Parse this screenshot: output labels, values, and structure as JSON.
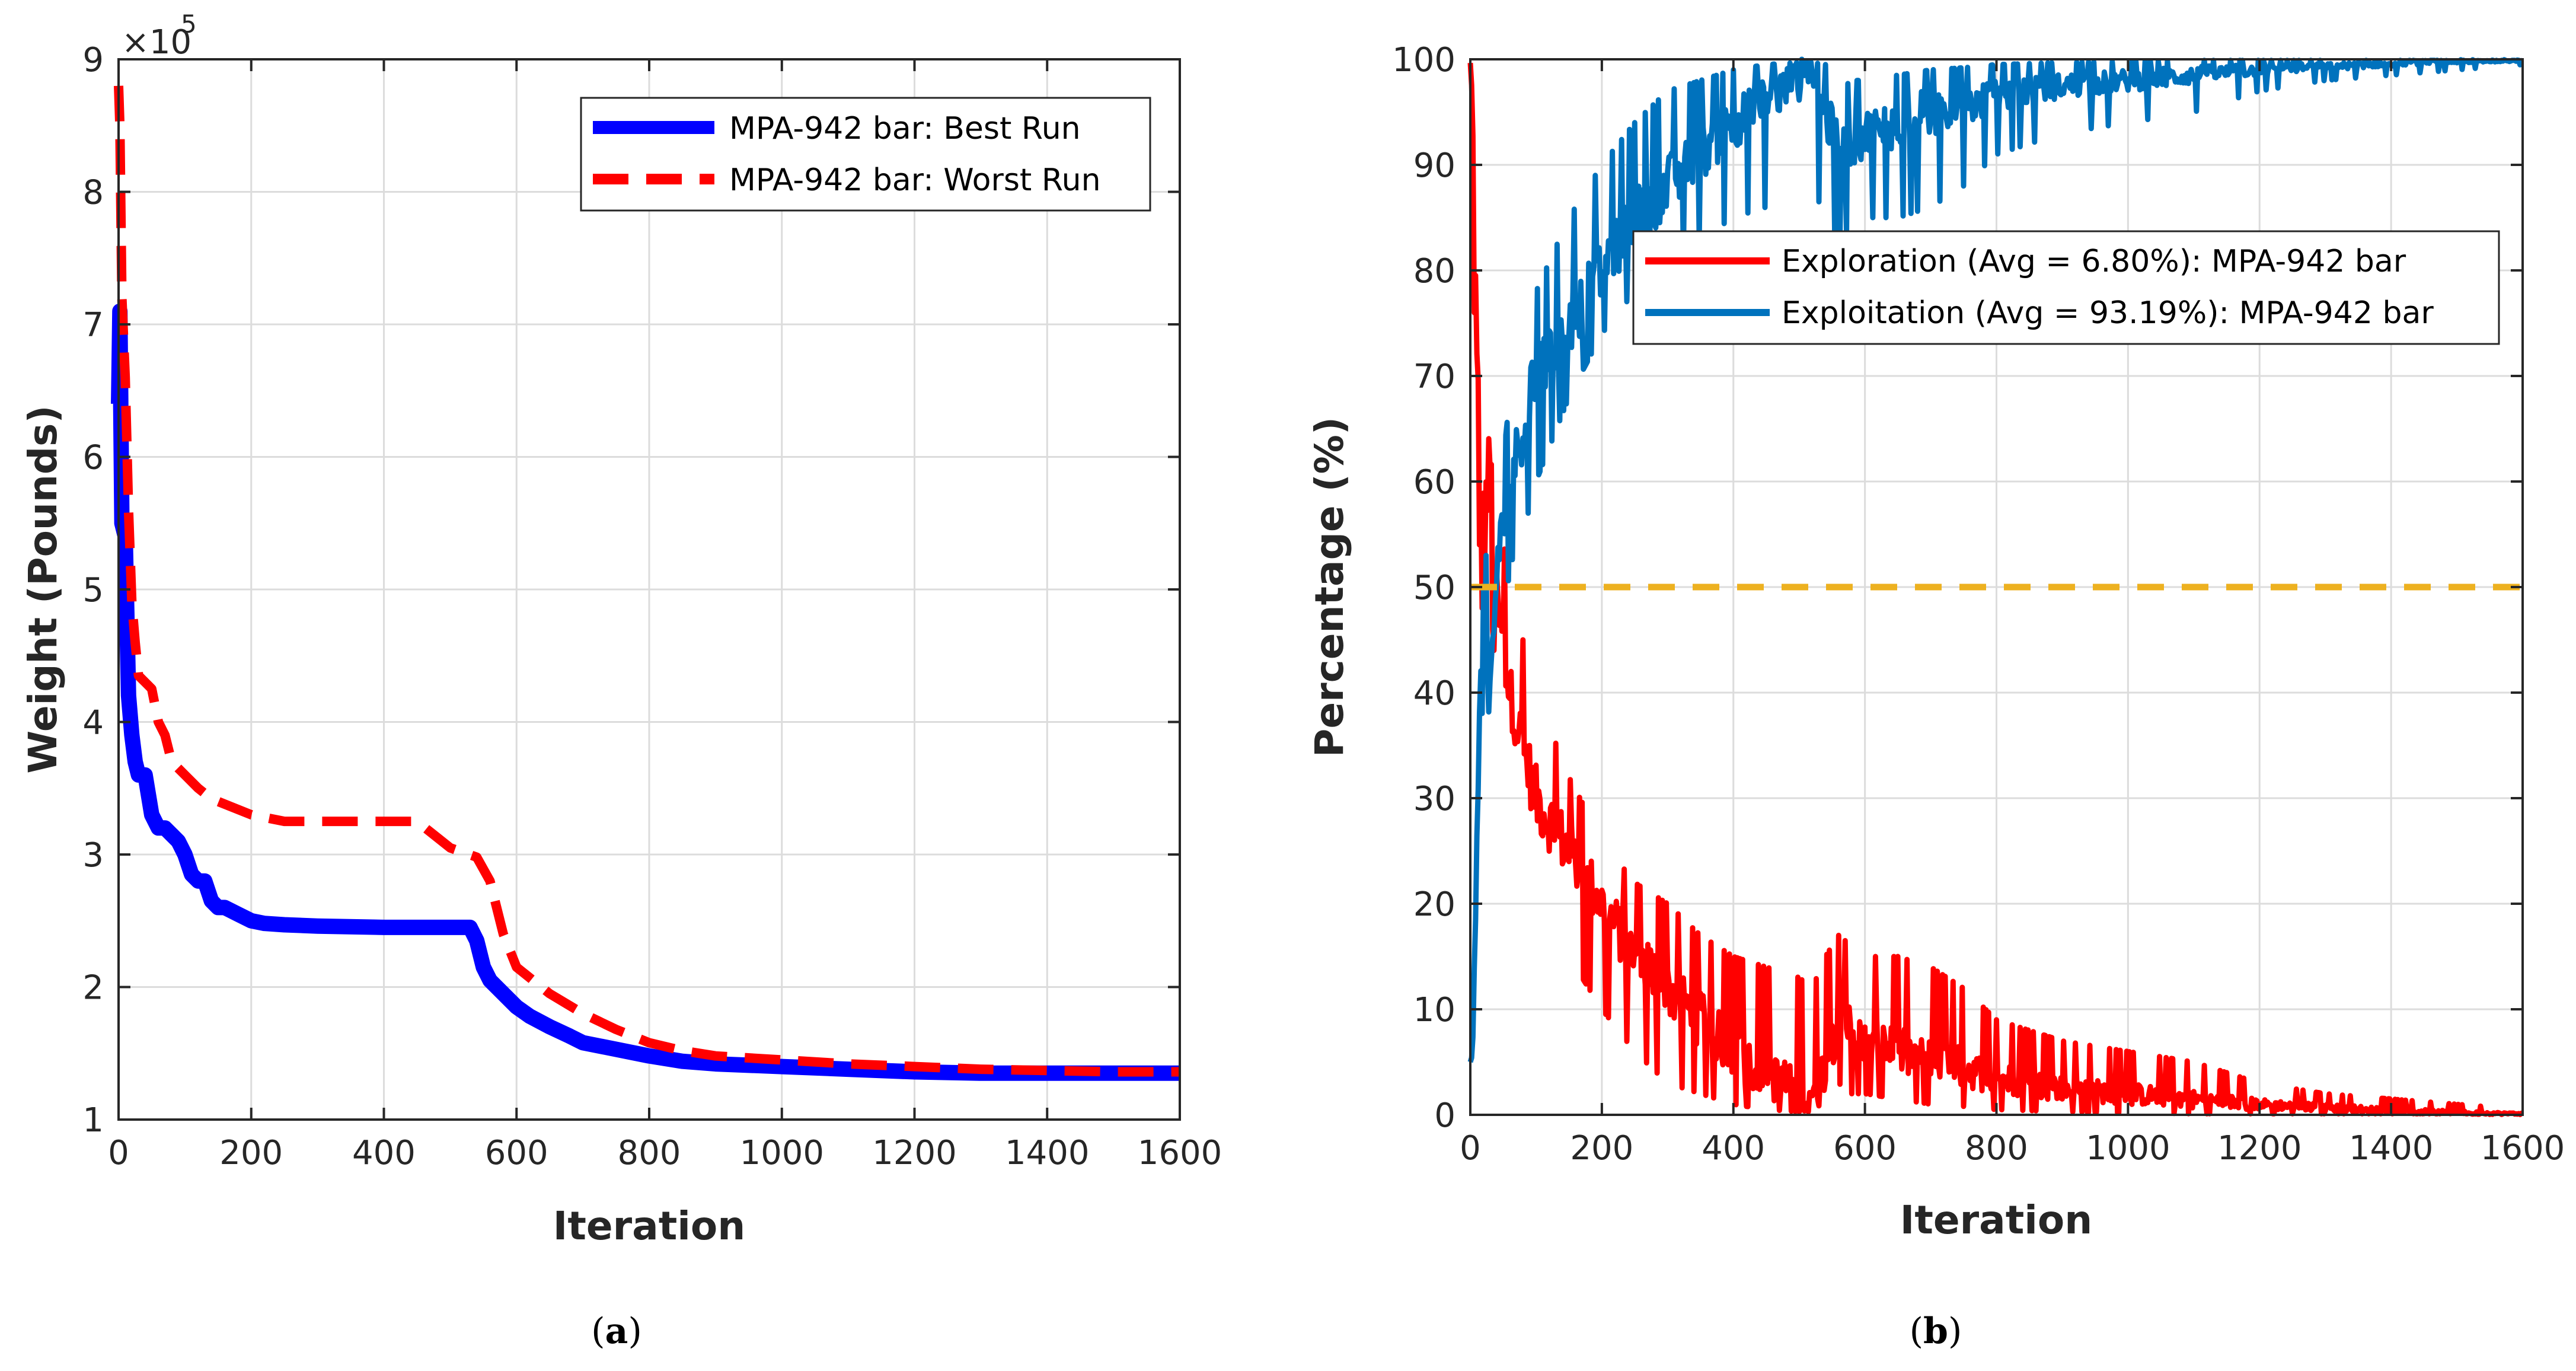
{
  "chart_data": [
    {
      "type": "line",
      "panel": "a",
      "xlabel": "Iteration",
      "ylabel": "Weight (Pounds)",
      "xlim": [
        0,
        1600
      ],
      "ylim": [
        1,
        9
      ],
      "exponent_label": "×10",
      "exponent_power": "5",
      "xticks": [
        "0",
        "200",
        "400",
        "600",
        "800",
        "1000",
        "1200",
        "1400",
        "1600"
      ],
      "yticks": [
        "1",
        "2",
        "3",
        "4",
        "5",
        "6",
        "7",
        "8",
        "9"
      ],
      "legend_position": "top-right",
      "series": [
        {
          "name": "MPA-942 bar: Best Run",
          "color": "#0000ff",
          "style": "solid",
          "x": [
            0,
            2,
            5,
            10,
            15,
            20,
            25,
            30,
            40,
            50,
            60,
            70,
            80,
            90,
            100,
            110,
            120,
            130,
            140,
            150,
            160,
            180,
            200,
            220,
            250,
            300,
            400,
            500,
            530,
            540,
            550,
            560,
            580,
            600,
            620,
            650,
            680,
            700,
            750,
            800,
            850,
            900,
            1000,
            1100,
            1200,
            1300,
            1400,
            1500,
            1600
          ],
          "values": [
            6.4,
            7.1,
            5.5,
            5.4,
            4.2,
            3.9,
            3.7,
            3.6,
            3.6,
            3.3,
            3.2,
            3.2,
            3.15,
            3.1,
            3.0,
            2.85,
            2.8,
            2.8,
            2.65,
            2.6,
            2.6,
            2.55,
            2.5,
            2.48,
            2.47,
            2.46,
            2.45,
            2.45,
            2.45,
            2.35,
            2.15,
            2.05,
            1.95,
            1.85,
            1.78,
            1.7,
            1.63,
            1.58,
            1.53,
            1.48,
            1.44,
            1.42,
            1.4,
            1.38,
            1.36,
            1.35,
            1.35,
            1.35,
            1.35
          ]
        },
        {
          "name": "MPA-942 bar: Worst Run",
          "color": "#ff0000",
          "style": "dashed",
          "x": [
            0,
            2,
            5,
            10,
            15,
            20,
            25,
            30,
            40,
            50,
            60,
            70,
            80,
            100,
            120,
            140,
            160,
            200,
            250,
            300,
            400,
            450,
            500,
            540,
            560,
            580,
            600,
            650,
            700,
            750,
            800,
            850,
            900,
            1000,
            1100,
            1200,
            1300,
            1400,
            1500,
            1600
          ],
          "values": [
            8.8,
            8.5,
            7.2,
            6.6,
            5.6,
            4.9,
            4.6,
            4.35,
            4.3,
            4.25,
            4.0,
            3.9,
            3.7,
            3.6,
            3.5,
            3.42,
            3.38,
            3.3,
            3.25,
            3.25,
            3.25,
            3.25,
            3.05,
            2.98,
            2.8,
            2.4,
            2.15,
            1.95,
            1.8,
            1.68,
            1.58,
            1.52,
            1.48,
            1.45,
            1.42,
            1.4,
            1.38,
            1.37,
            1.36,
            1.36
          ]
        }
      ]
    },
    {
      "type": "line",
      "panel": "b",
      "xlabel": "Iteration",
      "ylabel": "Percentage (%)",
      "xlim": [
        0,
        1600
      ],
      "ylim": [
        0,
        100
      ],
      "xticks": [
        "0",
        "200",
        "400",
        "600",
        "800",
        "1000",
        "1200",
        "1400",
        "1600"
      ],
      "yticks": [
        "0",
        "10",
        "20",
        "30",
        "40",
        "50",
        "60",
        "70",
        "80",
        "90",
        "100"
      ],
      "reference_line": {
        "value": 50,
        "color": "#edb120",
        "style": "dashed"
      },
      "legend_position": "top-right",
      "series": [
        {
          "name": "Exploration (Avg = 6.80%): MPA-942 bar",
          "color": "#ff0000",
          "style": "solid",
          "x": [
            0,
            5,
            10,
            20,
            30,
            40,
            50,
            60,
            80,
            100,
            150,
            200,
            250,
            300,
            350,
            400,
            450,
            500,
            520,
            540,
            560,
            580,
            600,
            650,
            700,
            750,
            800,
            900,
            1000,
            1100,
            1200,
            1300,
            1400,
            1500,
            1600
          ],
          "values": [
            100,
            90,
            70,
            55,
            62,
            48,
            45,
            40,
            35,
            30,
            25,
            20,
            15,
            12,
            9,
            6,
            4,
            2,
            1,
            5,
            9,
            8,
            7,
            6,
            5,
            4.5,
            3.5,
            2.5,
            2,
            1.5,
            1,
            0.7,
            0.4,
            0.2,
            0.1
          ],
          "envelope_upper": [
            100,
            95,
            85,
            75,
            72,
            60,
            55,
            48,
            45,
            40,
            32,
            26,
            22,
            20,
            17,
            15,
            14,
            13,
            12,
            15,
            17,
            16,
            15,
            15,
            14,
            12,
            9,
            7,
            6,
            5,
            3,
            2,
            1.5,
            1,
            0.5
          ],
          "envelope_lower": [
            95,
            80,
            60,
            45,
            50,
            40,
            38,
            32,
            28,
            22,
            15,
            10,
            6,
            3,
            2,
            1,
            0.5,
            0.3,
            0.3,
            0.5,
            3,
            2,
            2,
            1.5,
            1,
            0.8,
            0.5,
            0.3,
            0.2,
            0.1,
            0.1,
            0.1,
            0.1,
            0.1,
            0.1
          ]
        },
        {
          "name": "Exploitation (Avg = 93.19%): MPA-942 bar",
          "color": "#0072bd",
          "style": "solid",
          "x": [
            0,
            5,
            10,
            20,
            30,
            40,
            50,
            60,
            80,
            100,
            150,
            200,
            250,
            300,
            350,
            400,
            450,
            500,
            520,
            540,
            560,
            580,
            600,
            650,
            700,
            750,
            800,
            900,
            1000,
            1100,
            1200,
            1300,
            1400,
            1500,
            1600
          ],
          "values": [
            0,
            10,
            30,
            45,
            38,
            52,
            55,
            60,
            65,
            70,
            75,
            80,
            85,
            88,
            91,
            94,
            96,
            98,
            99,
            95,
            91,
            92,
            93,
            94,
            95,
            95.5,
            96.5,
            97.5,
            98,
            98.5,
            99,
            99.3,
            99.6,
            99.8,
            99.9
          ],
          "envelope_upper": [
            5,
            20,
            40,
            55,
            50,
            60,
            62,
            68,
            72,
            78,
            85,
            90,
            94,
            97,
            98,
            99,
            99.5,
            99.7,
            99.7,
            99.5,
            97,
            98,
            98,
            98.5,
            99,
            99.2,
            99.5,
            99.7,
            99.8,
            99.9,
            99.9,
            99.9,
            99.9,
            99.9,
            99.9
          ],
          "envelope_lower": [
            0,
            5,
            15,
            25,
            28,
            40,
            45,
            52,
            55,
            60,
            68,
            74,
            78,
            80,
            83,
            85,
            86,
            87,
            88,
            85,
            83,
            84,
            85,
            85,
            86,
            88,
            91,
            93,
            94,
            95,
            97,
            98,
            98.5,
            99,
            99.5
          ]
        }
      ]
    }
  ],
  "captions": {
    "a": "a",
    "b": "b"
  }
}
